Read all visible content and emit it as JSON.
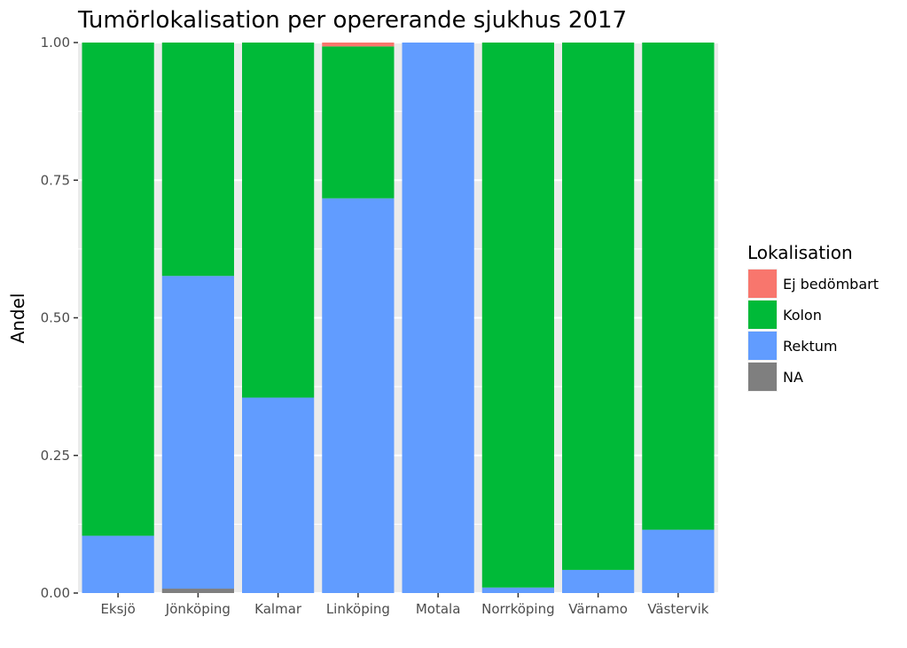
{
  "chart_data": {
    "type": "bar",
    "stacked": true,
    "title": "Tumörlokalisation per opererande sjukhus 2017",
    "xlabel": "",
    "ylabel": "Andel",
    "ylim": [
      0,
      1
    ],
    "yticks": [
      "0.00",
      "0.25",
      "0.50",
      "0.75",
      "1.00"
    ],
    "grid": true,
    "legend_position": "right",
    "legend_title": "Lokalisation",
    "categories": [
      "Eksjö",
      "Jönköping",
      "Kalmar",
      "Linköping",
      "Motala",
      "Norrköping",
      "Värnamo",
      "Västervik"
    ],
    "series": [
      {
        "name": "NA",
        "color": "#7f7f7f",
        "values": [
          0,
          0.008,
          0,
          0,
          0,
          0,
          0,
          0
        ]
      },
      {
        "name": "Rektum",
        "color": "#619cff",
        "values": [
          0.104,
          0.568,
          0.355,
          0.717,
          1.0,
          0.01,
          0.042,
          0.115
        ]
      },
      {
        "name": "Kolon",
        "color": "#00ba38",
        "values": [
          0.896,
          0.424,
          0.645,
          0.276,
          0,
          0.99,
          0.958,
          0.885
        ]
      },
      {
        "name": "Ej bedömbart",
        "color": "#f8766d",
        "values": [
          0,
          0,
          0,
          0.007,
          0,
          0,
          0,
          0
        ]
      }
    ],
    "legend_order": [
      "Ej bedömbart",
      "Kolon",
      "Rektum",
      "NA"
    ]
  }
}
